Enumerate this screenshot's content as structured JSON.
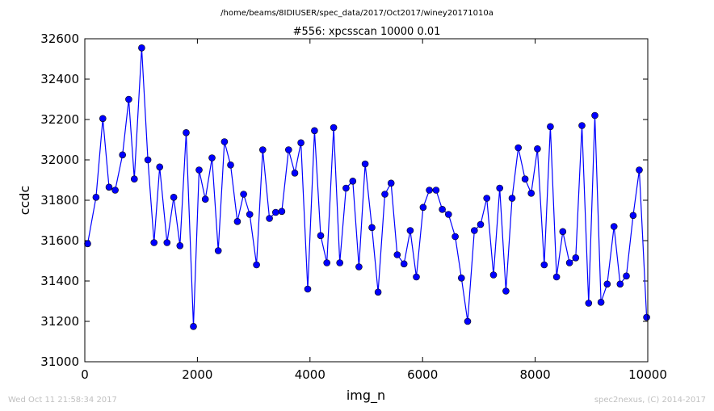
{
  "figure": {
    "suptitle": "/home/beams/8IDIUSER/spec_data/2017/Oct2017/winey20171010a",
    "timestamp": "Wed Oct 11 21:58:34 2017",
    "credit": "spec2nexus, (C) 2014-2017"
  },
  "chart_data": {
    "type": "line",
    "title": "#556: xpcsscan 10000 0.01",
    "xlabel": "img_n",
    "ylabel": "ccdc",
    "xlim": [
      0,
      10000
    ],
    "ylim": [
      31000,
      32600
    ],
    "xticks": [
      0,
      2000,
      4000,
      6000,
      8000,
      10000
    ],
    "yticks": [
      31000,
      31200,
      31400,
      31600,
      31800,
      32000,
      32200,
      32400,
      32600
    ],
    "grid": false,
    "marker": "circle",
    "color": "#0000ff",
    "series": [
      {
        "x": [
          50,
          200,
          320,
          430,
          540,
          670,
          780,
          880,
          1010,
          1120,
          1230,
          1330,
          1460,
          1580,
          1690,
          1800,
          1930,
          2030,
          2140,
          2260,
          2370,
          2480,
          2590,
          2710,
          2820,
          2930,
          3050,
          3160,
          3280,
          3390,
          3500,
          3620,
          3730,
          3840,
          3960,
          4080,
          4190,
          4300,
          4420,
          4530,
          4640,
          4760,
          4870,
          4980,
          5100,
          5210,
          5330,
          5440,
          5550,
          5670,
          5780,
          5890,
          6010,
          6120,
          6240,
          6350,
          6460,
          6580,
          6690,
          6800,
          6920,
          7030,
          7140,
          7260,
          7370,
          7480,
          7590,
          7700,
          7820,
          7930,
          8040,
          8160,
          8270,
          8380,
          8490,
          8610,
          8720,
          8830,
          8950,
          9060,
          9170,
          9280,
          9400,
          9510,
          9620,
          9740,
          9850,
          9980
        ],
        "y": [
          31585,
          31815,
          32205,
          31865,
          31850,
          32025,
          32300,
          31905,
          32555,
          32000,
          31590,
          31965,
          31590,
          31815,
          31575,
          32135,
          31175,
          31950,
          31805,
          32010,
          31550,
          32090,
          31975,
          31695,
          31830,
          31730,
          31480,
          32050,
          31710,
          31740,
          31745,
          32050,
          31935,
          32085,
          31360,
          32145,
          31625,
          31490,
          32160,
          31490,
          31860,
          31895,
          31470,
          31980,
          31665,
          31345,
          31830,
          31885,
          31530,
          31485,
          31650,
          31420,
          31765,
          31850,
          31850,
          31755,
          31730,
          31620,
          31415,
          31200,
          31650,
          31680,
          31810,
          31430,
          31860,
          31350,
          31810,
          32060,
          31905,
          31835,
          32055,
          31480,
          32165,
          31420,
          31645,
          31490,
          31515,
          32170,
          31290,
          32220,
          31295,
          31385,
          31670,
          31385,
          31425,
          31725,
          31950,
          31220
        ]
      }
    ]
  }
}
